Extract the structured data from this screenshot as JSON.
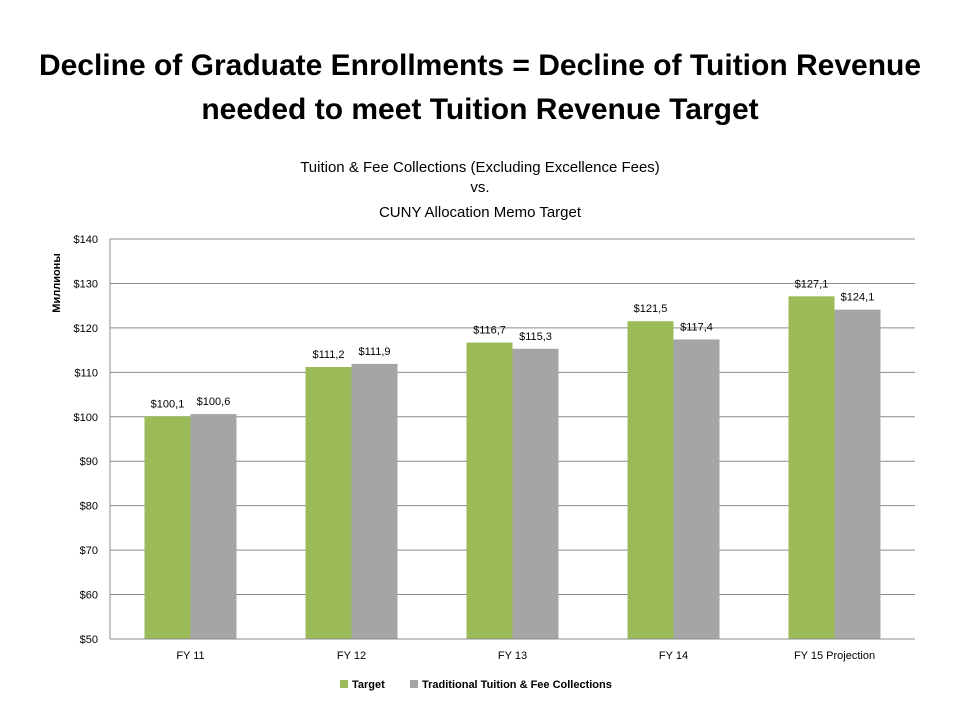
{
  "slide": {
    "title": "Decline of Graduate Enrollments = Decline of Tuition Revenue needed to meet Tuition Revenue Target"
  },
  "chart_data": {
    "type": "bar",
    "title_lines": [
      "Tuition & Fee Collections (Excluding Excellence Fees)",
      "vs.",
      "CUNY Allocation Memo Target"
    ],
    "ylabel": "Миллионы",
    "xlabel": "",
    "categories": [
      "FY 11",
      "FY 12",
      "FY 13",
      "FY 14",
      "FY 15 Projection"
    ],
    "series": [
      {
        "name": "Target",
        "color": "#9BBB59",
        "values": [
          100.1,
          111.2,
          116.7,
          121.5,
          127.1
        ],
        "labels": [
          "$100,1",
          "$111,2",
          "$116,7",
          "$121,5",
          "$127,1"
        ]
      },
      {
        "name": "Traditional Tuition & Fee Collections",
        "color": "#A5A5A5",
        "values": [
          100.6,
          111.9,
          115.3,
          117.4,
          124.1
        ],
        "labels": [
          "$100,6",
          "$111,9",
          "$115,3",
          "$117,4",
          "$124,1"
        ]
      }
    ],
    "ylim": [
      50,
      140
    ],
    "yticks": [
      50,
      60,
      70,
      80,
      90,
      100,
      110,
      120,
      130,
      140
    ],
    "ytick_labels": [
      "$50",
      "$60",
      "$70",
      "$80",
      "$90",
      "$100",
      "$110",
      "$120",
      "$130",
      "$140"
    ],
    "grid": true,
    "legend": "bottom"
  }
}
